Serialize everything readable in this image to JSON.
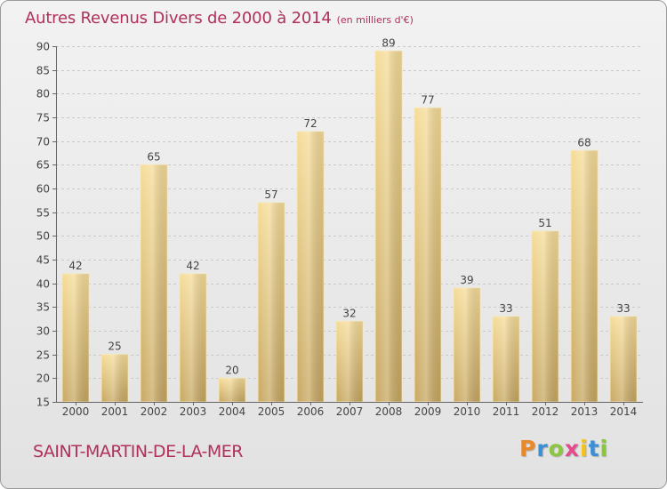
{
  "header": {
    "title": "Autres Revenus Divers de 2000 à 2014",
    "unit": "(en milliers d'€)"
  },
  "footer": {
    "city": "SAINT-MARTIN-DE-LA-MER",
    "brand_letters": [
      "P",
      "r",
      "o",
      "x",
      "i",
      "t",
      "i"
    ],
    "brand_colors": [
      "#e8892b",
      "#3b8fd6",
      "#8cc63f",
      "#e54a8a",
      "#f2c418",
      "#3b8fd6",
      "#8cc63f"
    ]
  },
  "chart_data": {
    "type": "bar",
    "title": "Autres Revenus Divers de 2000 à 2014",
    "xlabel": "",
    "ylabel": "",
    "categories": [
      "2000",
      "2001",
      "2002",
      "2003",
      "2004",
      "2005",
      "2006",
      "2007",
      "2008",
      "2009",
      "2010",
      "2011",
      "2012",
      "2013",
      "2014"
    ],
    "values": [
      42,
      25,
      65,
      42,
      20,
      57,
      72,
      32,
      89,
      77,
      39,
      33,
      51,
      68,
      33
    ],
    "ylim": [
      15,
      90
    ],
    "yticks": [
      15,
      20,
      25,
      30,
      35,
      40,
      45,
      50,
      55,
      60,
      65,
      70,
      75,
      80,
      85,
      90
    ],
    "grid": true,
    "bar_color": "#e9cd80"
  }
}
